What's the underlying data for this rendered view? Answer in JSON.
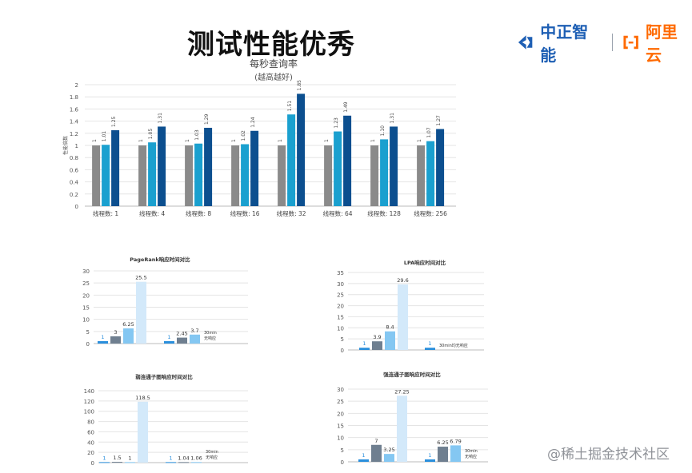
{
  "slide": {
    "title": "测试性能优秀",
    "brand_left": "中正智能",
    "brand_right": "阿里云",
    "watermark": "@稀土掘金技术社区"
  },
  "colors": {
    "gray": "#8a8a8a",
    "teal": "#1aa0cf",
    "navy": "#0c4f8f",
    "blue": "#2a8fdc",
    "slate": "#6f7f90",
    "light_blue": "#84c7f2",
    "pale_blue": "#d3e9fa",
    "accent_blue": "#1e5fb4",
    "accent_orange": "#ff6a00"
  },
  "chart_data": [
    {
      "type": "bar",
      "title": "每秒查询率",
      "subtitle": "(越高越好)",
      "ylabel": "性能倍数",
      "ylim": [
        0,
        2
      ],
      "yticks": [
        "0",
        "0.2",
        "0.4",
        "0.6",
        "0.8",
        "1",
        "1.2",
        "1.4",
        "1.6",
        "1.8",
        "2"
      ],
      "categories": [
        "线程数: 1",
        "线程数: 4",
        "线程数: 8",
        "线程数: 16",
        "线程数: 32",
        "线程数: 64",
        "线程数: 128",
        "线程数: 256"
      ],
      "grid": true,
      "series": [
        {
          "values": [
            1,
            1,
            1,
            1,
            1,
            1,
            1,
            1
          ],
          "labels": [
            "1",
            "1",
            "1",
            "1",
            "1",
            "1",
            "1",
            "1"
          ]
        },
        {
          "values": [
            1.01,
            1.05,
            1.03,
            1.02,
            1.51,
            1.23,
            1.1,
            1.07
          ],
          "labels": [
            "1.01",
            "1.05",
            "1.03",
            "1.02",
            "1.51",
            "1.23",
            "1.10",
            "1.07"
          ]
        },
        {
          "values": [
            1.25,
            1.31,
            1.29,
            1.24,
            1.85,
            1.49,
            1.31,
            1.27
          ],
          "labels": [
            "1.25",
            "1.31",
            "1.29",
            "1.24",
            "1.85",
            "1.49",
            "1.31",
            "1.27"
          ]
        }
      ]
    },
    {
      "type": "bar",
      "title": "PageRank响应时间对比",
      "ylim": [
        0,
        30
      ],
      "yticks": [
        "0",
        "5",
        "10",
        "15",
        "20",
        "25",
        "30"
      ],
      "grid": true,
      "groups": [
        {
          "values": [
            1,
            3,
            6.25,
            25.5
          ],
          "labels": [
            "1",
            "3",
            "6.25",
            "25.5"
          ]
        },
        {
          "values": [
            1,
            2.45,
            3.7
          ],
          "labels": [
            "1",
            "2.45",
            "3.7"
          ],
          "note": "30min 无响应"
        }
      ]
    },
    {
      "type": "bar",
      "title": "LPA响应时间对比",
      "ylim": [
        0,
        35
      ],
      "yticks": [
        "0",
        "5",
        "10",
        "15",
        "20",
        "25",
        "30",
        "35"
      ],
      "grid": true,
      "groups": [
        {
          "values": [
            1,
            3.9,
            8.4,
            29.6
          ],
          "labels": [
            "1",
            "3.9",
            "8.4",
            "29.6"
          ]
        },
        {
          "values": [
            1
          ],
          "labels": [
            "1"
          ],
          "note": "30min均无响应"
        }
      ]
    },
    {
      "type": "bar",
      "title": "弱连通子图响应时间对比",
      "ylim": [
        0,
        140
      ],
      "yticks": [
        "0",
        "20",
        "40",
        "60",
        "80",
        "100",
        "120",
        "140"
      ],
      "grid": true,
      "groups": [
        {
          "values": [
            1,
            1.5,
            1,
            118.5
          ],
          "labels": [
            "1",
            "1.5",
            "1",
            "118.5"
          ]
        },
        {
          "values": [
            1,
            1.04,
            1.06
          ],
          "labels": [
            "1",
            "1.04",
            "1.06"
          ],
          "note": "30min 无响应"
        }
      ]
    },
    {
      "type": "bar",
      "title": "强连通子图响应时间对比",
      "ylim": [
        0,
        30
      ],
      "yticks": [
        "0",
        "5",
        "10",
        "15",
        "20",
        "25",
        "30"
      ],
      "grid": true,
      "groups": [
        {
          "values": [
            1,
            7,
            3.25,
            27.25
          ],
          "labels": [
            "1",
            "7",
            "3.25",
            "27.25"
          ]
        },
        {
          "values": [
            1,
            6.25,
            6.79
          ],
          "labels": [
            "1",
            "6.25",
            "6.79"
          ],
          "note": "30min 无响应"
        }
      ]
    }
  ]
}
